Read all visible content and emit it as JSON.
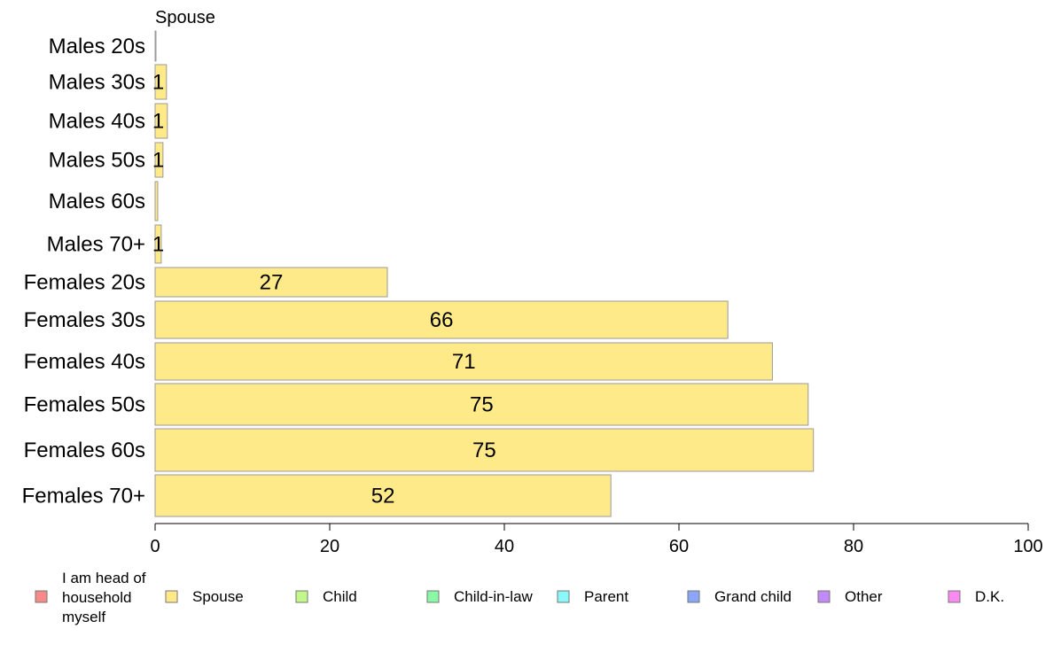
{
  "chart_data": {
    "type": "bar",
    "orientation": "horizontal",
    "panel_title": "Spouse",
    "categories": [
      "Males 20s",
      "Males 30s",
      "Males 40s",
      "Males 50s",
      "Males 60s",
      "Males 70+",
      "Females 20s",
      "Females 30s",
      "Females 40s",
      "Females 50s",
      "Females 60s",
      "Females 70+"
    ],
    "series": [
      {
        "name": "Spouse",
        "color": "#ffea8a",
        "values": [
          0.1,
          1.3,
          1.4,
          0.9,
          0.3,
          0.7,
          26.6,
          65.6,
          70.7,
          74.8,
          75.4,
          52.2
        ],
        "labels": [
          "",
          "1",
          "1",
          "1",
          "",
          "1",
          "27",
          "66",
          "71",
          "75",
          "75",
          "52"
        ]
      }
    ],
    "xlim": [
      0,
      100
    ],
    "xticks": [
      0,
      20,
      40,
      60,
      80,
      100
    ],
    "grid": false,
    "legend_position": "bottom",
    "legend": [
      {
        "label": "I am head of household myself",
        "color": "#f88a8a"
      },
      {
        "label": "Spouse",
        "color": "#ffea8a"
      },
      {
        "label": "Child",
        "color": "#c2f88a"
      },
      {
        "label": "Child-in-law",
        "color": "#8af8a6"
      },
      {
        "label": "Parent",
        "color": "#8af8f8"
      },
      {
        "label": "Grand child",
        "color": "#8aa6f8"
      },
      {
        "label": "Other",
        "color": "#c28af8"
      },
      {
        "label": "D.K.",
        "color": "#f88af2"
      }
    ]
  }
}
